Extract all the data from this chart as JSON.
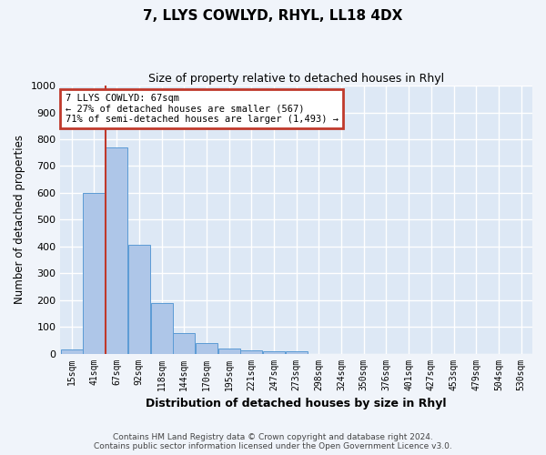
{
  "title": "7, LLYS COWLYD, RHYL, LL18 4DX",
  "subtitle": "Size of property relative to detached houses in Rhyl",
  "xlabel": "Distribution of detached houses by size in Rhyl",
  "ylabel": "Number of detached properties",
  "bar_color": "#aec6e8",
  "bar_edge_color": "#5b9bd5",
  "background_color": "#dde8f5",
  "grid_color": "#ffffff",
  "fig_bg_color": "#f0f4fa",
  "categories": [
    "15sqm",
    "41sqm",
    "67sqm",
    "92sqm",
    "118sqm",
    "144sqm",
    "170sqm",
    "195sqm",
    "221sqm",
    "247sqm",
    "273sqm",
    "298sqm",
    "324sqm",
    "350sqm",
    "376sqm",
    "401sqm",
    "427sqm",
    "453sqm",
    "479sqm",
    "504sqm",
    "530sqm"
  ],
  "values": [
    15,
    600,
    770,
    405,
    190,
    78,
    38,
    18,
    13,
    10,
    10,
    0,
    0,
    0,
    0,
    0,
    0,
    0,
    0,
    0,
    0
  ],
  "ylim": [
    0,
    1000
  ],
  "yticks": [
    0,
    100,
    200,
    300,
    400,
    500,
    600,
    700,
    800,
    900,
    1000
  ],
  "property_bar_index": 2,
  "red_line_color": "#c0392b",
  "annotation_line1": "7 LLYS COWLYD: 67sqm",
  "annotation_line2": "← 27% of detached houses are smaller (567)",
  "annotation_line3": "71% of semi-detached houses are larger (1,493) →",
  "annotation_box_color": "#c0392b",
  "annotation_bg_color": "#ffffff",
  "footer_text": "Contains HM Land Registry data © Crown copyright and database right 2024.\nContains public sector information licensed under the Open Government Licence v3.0."
}
